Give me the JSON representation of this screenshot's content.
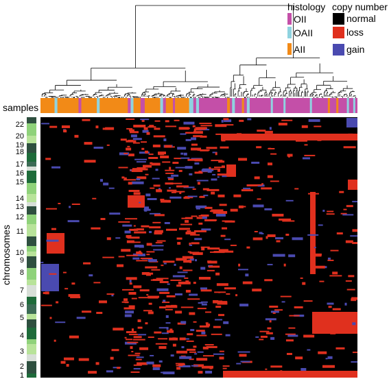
{
  "chart_data": {
    "type": "heatmap",
    "title": "",
    "xlabel": "samples",
    "ylabel": "chromosomes",
    "row_labels": [
      "22",
      "20",
      "19",
      "18",
      "17",
      "16",
      "15",
      "14",
      "13",
      "12",
      "11",
      "10",
      "9",
      "8",
      "7",
      "6",
      "5",
      "4",
      "3",
      "2",
      "1"
    ],
    "histology_legend": {
      "title": "histology",
      "items": [
        {
          "label": "OII",
          "color": "#c44fa8"
        },
        {
          "label": "OAII",
          "color": "#8fd3e0"
        },
        {
          "label": "AII",
          "color": "#f28a17"
        }
      ]
    },
    "copy_number_legend": {
      "title": "copy number",
      "items": [
        {
          "label": "normal",
          "color": "#000000"
        },
        {
          "label": "loss",
          "color": "#e0301e"
        },
        {
          "label": "gain",
          "color": "#4a4ab0"
        }
      ]
    },
    "sample_histology_sequence": [
      "AII",
      "OAII",
      "AII",
      "OII",
      "AII",
      "OAII",
      "AII",
      "OII",
      "OAII",
      "AII",
      "OII",
      "AII",
      "OAII",
      "OII",
      "AII",
      "OII",
      "AII",
      "OAII",
      "OII",
      "OAII",
      "OII",
      "AII",
      "OII",
      "OAII",
      "OII",
      "AII",
      "OII",
      "OAII",
      "OII"
    ],
    "summary_features": [
      {
        "region": "chromosome 1 (bottom)",
        "state": "loss",
        "samples": "OII cluster"
      },
      {
        "region": "chromosome 19 (top)",
        "state": "loss",
        "samples": "OII cluster"
      },
      {
        "region": "chromosome 7",
        "state": "gain",
        "samples": "left AII samples"
      },
      {
        "region": "chromosome 5",
        "state": "loss",
        "samples": "right OII samples"
      },
      {
        "region": "chromosome 11",
        "state": "loss",
        "samples": "left AII samples"
      }
    ]
  }
}
